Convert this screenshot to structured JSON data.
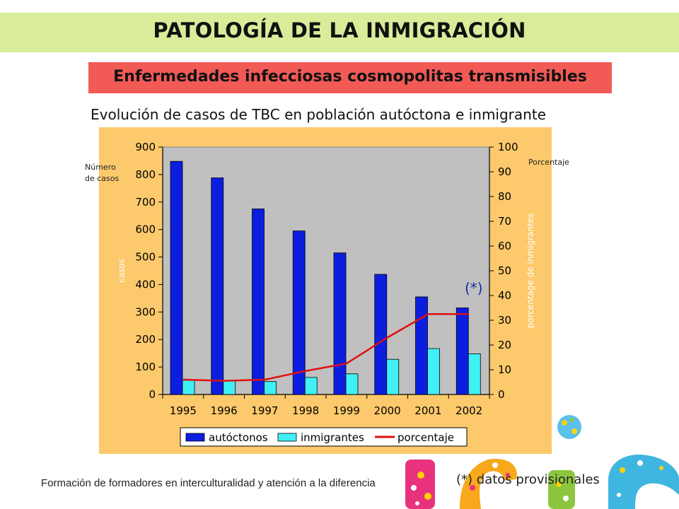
{
  "header": {
    "title": "PATOLOGÍA DE LA INMIGRACIÓN",
    "subtitle": "Enfermedades infecciosas cosmopolitas transmisibles",
    "caption": "Evolución de casos de TBC en población autóctona e inmigrante"
  },
  "chart_data": {
    "type": "bar",
    "categories": [
      "1995",
      "1996",
      "1997",
      "1998",
      "1999",
      "2000",
      "2001",
      "2002"
    ],
    "series": [
      {
        "name": "autóctonos",
        "kind": "bar",
        "axis": "left",
        "color": "#0b1ee0",
        "values": [
          848,
          788,
          675,
          595,
          515,
          437,
          355,
          315
        ]
      },
      {
        "name": "inmigrantes",
        "kind": "bar",
        "axis": "left",
        "color": "#40f0f5",
        "values": [
          52,
          50,
          47,
          62,
          75,
          128,
          167,
          148
        ]
      },
      {
        "name": "porcentaje",
        "kind": "line",
        "axis": "right",
        "color": "#e01010",
        "values": [
          6,
          5.5,
          6,
          9.5,
          12.5,
          23,
          32.5,
          32.5
        ]
      }
    ],
    "ylim_left": [
      0,
      900
    ],
    "yticks_left": [
      "0",
      "100",
      "200",
      "300",
      "400",
      "500",
      "600",
      "700",
      "800",
      "900"
    ],
    "ylim_right": [
      0,
      100
    ],
    "yticks_right": [
      "0",
      "10",
      "20",
      "30",
      "40",
      "50",
      "60",
      "70",
      "80",
      "90",
      "100"
    ],
    "ylabel_left": "casos",
    "ylabel_right": "porcentage de inmigrantes",
    "left_axis_note": [
      "Número",
      "de casos"
    ],
    "right_axis_note": "Porcentaje",
    "annotation": "(*)",
    "legend_position": "bottom",
    "plot_background": "#c0c0c0",
    "grid": false
  },
  "footer": {
    "text": "Formación de formadores en interculturalidad y atención a la diferencia",
    "footnote": "(*) datos provisionales"
  }
}
